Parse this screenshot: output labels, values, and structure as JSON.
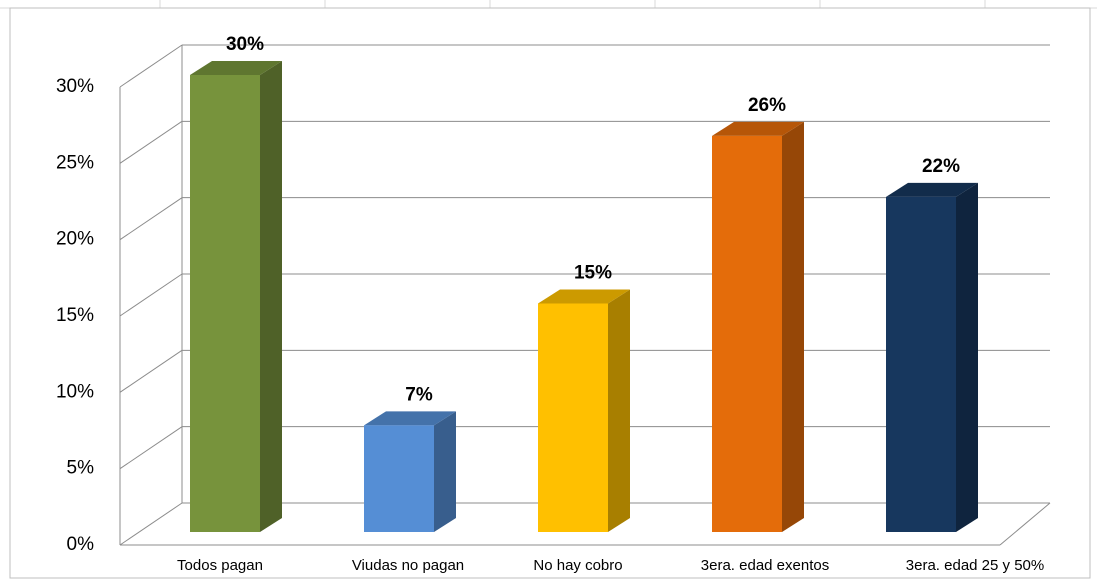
{
  "chart_data": {
    "type": "bar3d",
    "categories": [
      "Todos pagan",
      "Viudas  no pagan",
      "No hay cobro",
      "3era. edad exentos",
      "3era. edad 25  y 50%"
    ],
    "values": [
      30,
      7,
      15,
      26,
      22
    ],
    "value_labels": [
      "30%",
      "7%",
      "15%",
      "26%",
      "22%"
    ],
    "colors": [
      "#77933c",
      "#558ed5",
      "#ffc000",
      "#e46c0a",
      "#17375e"
    ],
    "ylim": [
      0,
      30
    ],
    "yticks": [
      {
        "value": 0,
        "label": "0%"
      },
      {
        "value": 5,
        "label": "5%"
      },
      {
        "value": 10,
        "label": "10%"
      },
      {
        "value": 15,
        "label": "15%"
      },
      {
        "value": 20,
        "label": "20%"
      },
      {
        "value": 25,
        "label": "25%"
      },
      {
        "value": 30,
        "label": "30%"
      }
    ],
    "grid": true
  }
}
